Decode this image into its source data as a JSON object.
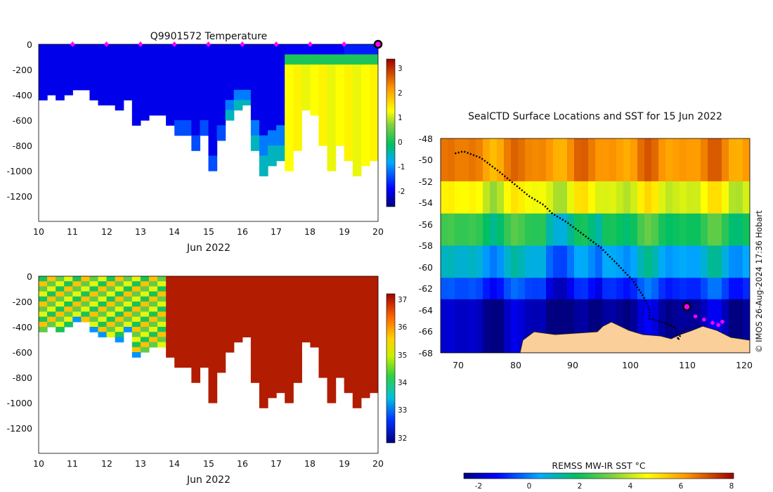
{
  "temperature_panel": {
    "title": "Q9901572  Temperature",
    "xlabel": "Jun 2022",
    "x_ticks": [
      "10",
      "11",
      "12",
      "13",
      "14",
      "15",
      "16",
      "17",
      "18",
      "19",
      "20"
    ],
    "y_ticks": [
      "0",
      "-200",
      "-400",
      "-600",
      "-800",
      "-1000",
      "-1200"
    ],
    "colorbar_ticks": [
      "3",
      "2",
      "1",
      "0",
      "-1",
      "-2"
    ]
  },
  "salinity_panel": {
    "xlabel": "Jun 2022",
    "x_ticks": [
      "10",
      "11",
      "12",
      "13",
      "14",
      "15",
      "16",
      "17",
      "18",
      "19",
      "20"
    ],
    "y_ticks": [
      "0",
      "-200",
      "-400",
      "-600",
      "-800",
      "-1000",
      "-1200"
    ],
    "colorbar_ticks": [
      "37",
      "36",
      "35",
      "34",
      "33",
      "32"
    ]
  },
  "map_panel": {
    "title": "SealCTD Surface Locations and SST for 15 Jun 2022",
    "x_ticks": [
      "70",
      "80",
      "90",
      "100",
      "110",
      "120"
    ],
    "y_ticks": [
      "-48",
      "-50",
      "-52",
      "-54",
      "-56",
      "-58",
      "-60",
      "-62",
      "-64",
      "-66",
      "-68"
    ],
    "credit": "© IMOS 26-Aug-2024 17:36 Hobart",
    "colorbar_title": "REMSS MW-IR SST °C",
    "colorbar_ticks": [
      "-2",
      "0",
      "2",
      "4",
      "6",
      "8"
    ]
  },
  "colors": {
    "profile_marker": "#ff00ff",
    "track": "#000000",
    "land": "#fbcf9a"
  },
  "chart_data": [
    {
      "type": "heatmap",
      "title": "Q9901572  Temperature",
      "xlabel": "Jun 2022",
      "ylabel": "",
      "xlim": [
        10,
        20
      ],
      "ylim": [
        -1400,
        0
      ],
      "clim": [
        -2.5,
        3.5
      ],
      "profile_days": [
        10.25,
        10.5,
        10.75,
        11.0,
        11.25,
        11.5,
        11.75,
        12.0,
        12.25,
        12.5,
        12.75,
        13.0,
        13.25,
        13.5,
        13.75,
        14.0,
        14.25,
        14.5,
        14.75,
        15.0,
        15.25,
        15.5,
        15.75,
        16.0,
        16.25,
        16.5,
        16.75,
        17.0,
        17.25,
        17.5,
        17.75,
        18.0,
        18.25,
        18.5,
        18.75,
        19.0,
        19.25,
        19.5,
        19.75,
        20.0
      ],
      "profile_max_depth": [
        440,
        400,
        440,
        400,
        340,
        350,
        420,
        450,
        470,
        500,
        420,
        610,
        600,
        560,
        560,
        640,
        690,
        690,
        820,
        700,
        1000,
        740,
        590,
        500,
        480,
        820,
        1020,
        940,
        900,
        1000,
        820,
        500,
        560,
        800,
        1000,
        780,
        920,
        1020,
        940,
        920
      ],
      "warm_layer_start_day": 17.3,
      "markers_day": [
        11,
        12,
        13,
        14,
        15,
        16,
        17,
        18,
        19,
        20
      ]
    },
    {
      "type": "heatmap",
      "title": "",
      "xlabel": "Jun 2022",
      "ylabel": "",
      "xlim": [
        10,
        20
      ],
      "ylim": [
        -1400,
        0
      ],
      "clim": [
        31.8,
        37.2
      ],
      "profile_days": [
        10.25,
        10.5,
        10.75,
        11.0,
        11.25,
        11.5,
        11.75,
        12.0,
        12.25,
        12.5,
        12.75,
        13.0,
        13.25,
        13.5,
        13.75,
        14.0,
        14.25,
        14.5,
        14.75,
        15.0,
        15.25,
        15.5,
        15.75,
        16.0,
        16.25,
        16.5,
        16.75,
        17.0,
        17.25,
        17.5,
        17.75,
        18.0,
        18.25,
        18.5,
        18.75,
        19.0,
        19.25,
        19.5,
        19.75,
        20.0
      ],
      "profile_max_depth": [
        440,
        400,
        440,
        400,
        340,
        350,
        420,
        450,
        470,
        500,
        420,
        610,
        600,
        560,
        560,
        640,
        690,
        690,
        820,
        700,
        1000,
        740,
        590,
        500,
        480,
        820,
        1020,
        940,
        900,
        1000,
        820,
        500,
        560,
        800,
        1000,
        780,
        920,
        1020,
        940,
        920
      ]
    },
    {
      "type": "heatmap",
      "title": "SealCTD Surface Locations and SST for 15 Jun 2022",
      "xlabel": "",
      "ylabel": "",
      "xlim": [
        67,
        121
      ],
      "ylim": [
        -68,
        -48
      ],
      "clim": [
        -2.5,
        8.5
      ],
      "colorbar_label": "REMSS MW-IR SST °C",
      "sst_bands": [
        {
          "lat_from": -48,
          "lat_to": -52,
          "value": 6.5
        },
        {
          "lat_from": -52,
          "lat_to": -55,
          "value": 4.5
        },
        {
          "lat_from": -55,
          "lat_to": -58,
          "value": 2.5
        },
        {
          "lat_from": -58,
          "lat_to": -61,
          "value": 1.0
        },
        {
          "lat_from": -61,
          "lat_to": -63,
          "value": -0.5
        },
        {
          "lat_from": -63,
          "lat_to": -68,
          "value": -2.0
        }
      ],
      "track": [
        [
          69.5,
          -49.4
        ],
        [
          71,
          -49.2
        ],
        [
          74,
          -49.8
        ],
        [
          77,
          -51
        ],
        [
          80,
          -52.3
        ],
        [
          82.5,
          -53.4
        ],
        [
          85,
          -54.2
        ],
        [
          86.5,
          -55
        ],
        [
          89,
          -55.8
        ],
        [
          92,
          -57
        ],
        [
          95,
          -58.2
        ],
        [
          98,
          -59.8
        ],
        [
          100.5,
          -61.2
        ],
        [
          102.5,
          -62.8
        ],
        [
          103.5,
          -64
        ],
        [
          103.5,
          -64.8
        ],
        [
          106,
          -65.2
        ],
        [
          108,
          -65.6
        ],
        [
          108.5,
          -66.8
        ],
        [
          109,
          -66.2
        ],
        [
          110,
          -65.6
        ]
      ],
      "profile_points": [
        [
          110,
          -63.7
        ],
        [
          111.5,
          -64.6
        ],
        [
          113,
          -64.9
        ],
        [
          114.5,
          -65.2
        ],
        [
          115.5,
          -65.4
        ],
        [
          116.2,
          -65.1
        ]
      ]
    }
  ]
}
